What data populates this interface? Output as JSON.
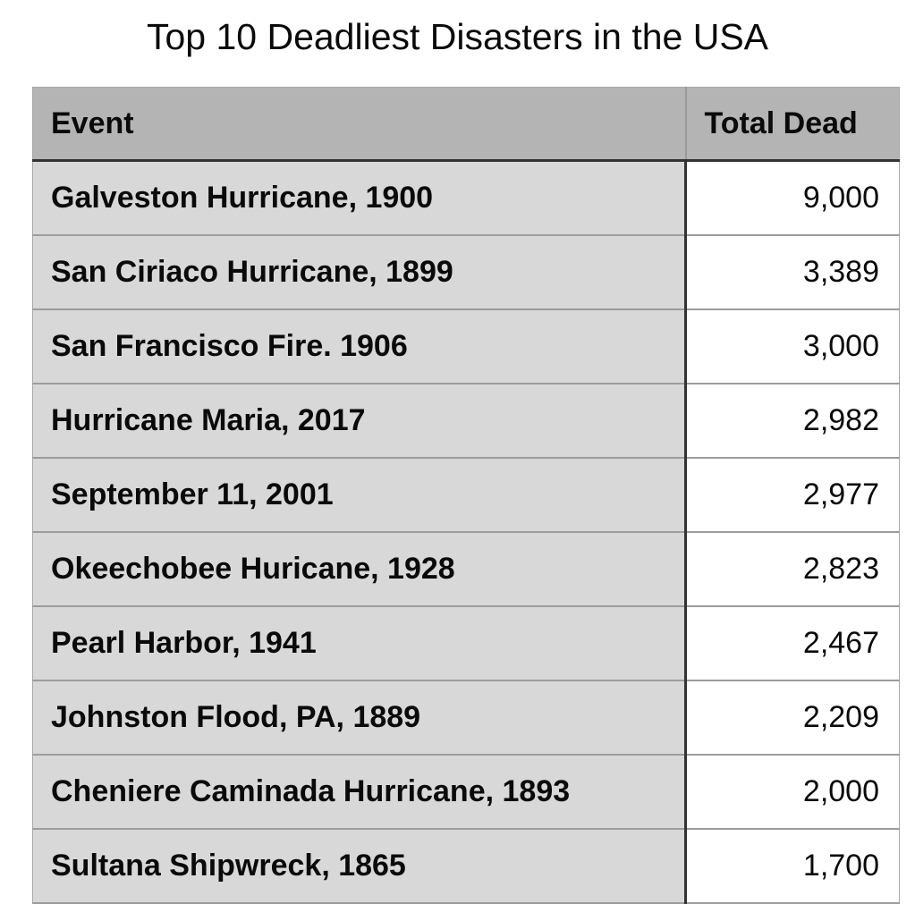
{
  "title": "Top 10 Deadliest Disasters in the USA",
  "table": {
    "columns": [
      "Event",
      "Total Dead"
    ],
    "rows": [
      {
        "event": "Galveston Hurricane, 1900",
        "total_dead": "9,000"
      },
      {
        "event": "San Ciriaco Hurricane, 1899",
        "total_dead": "3,389"
      },
      {
        "event": "San Francisco Fire. 1906",
        "total_dead": "3,000"
      },
      {
        "event": "Hurricane Maria, 2017",
        "total_dead": "2,982"
      },
      {
        "event": "September 11, 2001",
        "total_dead": "2,977"
      },
      {
        "event": "Okeechobee Huricane, 1928",
        "total_dead": "2,823"
      },
      {
        "event": "Pearl Harbor, 1941",
        "total_dead": "2,467"
      },
      {
        "event": "Johnston Flood, PA, 1889",
        "total_dead": "2,209"
      },
      {
        "event": "Cheniere Caminada Hurricane, 1893",
        "total_dead": "2,000"
      },
      {
        "event": "Sultana Shipwreck, 1865",
        "total_dead": "1,700"
      }
    ]
  },
  "colors": {
    "header_bg": "#b4b4b4",
    "event_cell_bg": "#d8d8d8",
    "value_cell_bg": "#ffffff",
    "dark_border": "#333333",
    "row_separator": "#9c9c9c",
    "outer_border": "#a9a9a9",
    "text": "#0a0a0a"
  },
  "chart_data": {
    "type": "table",
    "title": "Top 10 Deadliest Disasters in the USA",
    "columns": [
      "Event",
      "Total Dead"
    ],
    "rows": [
      [
        "Galveston Hurricane, 1900",
        9000
      ],
      [
        "San Ciriaco Hurricane, 1899",
        3389
      ],
      [
        "San Francisco Fire. 1906",
        3000
      ],
      [
        "Hurricane Maria, 2017",
        2982
      ],
      [
        "September 11, 2001",
        2977
      ],
      [
        "Okeechobee Huricane, 1928",
        2823
      ],
      [
        "Pearl Harbor, 1941",
        2467
      ],
      [
        "Johnston Flood, PA, 1889",
        2209
      ],
      [
        "Cheniere Caminada Hurricane, 1893",
        2000
      ],
      [
        "Sultana Shipwreck, 1865",
        1700
      ]
    ]
  }
}
